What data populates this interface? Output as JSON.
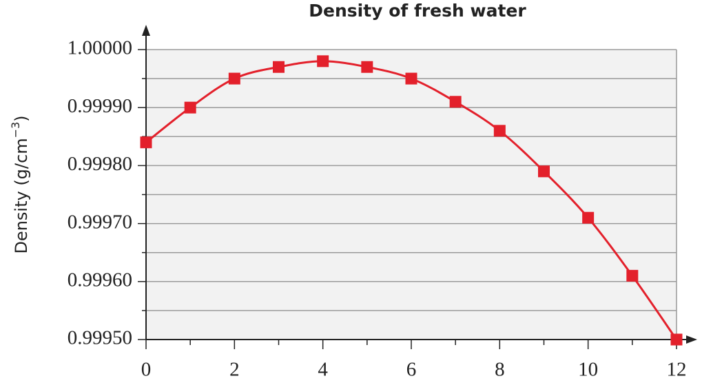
{
  "chart_data": {
    "type": "line",
    "title": "Density of fresh water",
    "ylabel": [
      "Density (g/cm",
      "−3",
      ")"
    ],
    "x": [
      0,
      1,
      2,
      3,
      4,
      5,
      6,
      7,
      8,
      9,
      10,
      11,
      12
    ],
    "series": [
      {
        "color": "#e3202b",
        "values": [
          0.99984,
          0.9999,
          0.99995,
          0.99997,
          0.99998,
          0.99997,
          0.99995,
          0.99991,
          0.99986,
          0.99979,
          0.99971,
          0.99961,
          0.9995
        ]
      }
    ],
    "xlim": [
      0,
      12
    ],
    "xticks": [
      0,
      2,
      4,
      6,
      8,
      10,
      12
    ],
    "x_minor_ticks": [
      1,
      3,
      5,
      7,
      9,
      11
    ],
    "ylim": [
      0.9995,
      1.0
    ],
    "yticks": [
      {
        "value": 0.9995,
        "label": "0.99950"
      },
      {
        "value": 0.9996,
        "label": "0.99960"
      },
      {
        "value": 0.9997,
        "label": "0.99970"
      },
      {
        "value": 0.9998,
        "label": "0.99980"
      },
      {
        "value": 0.9999,
        "label": "0.99990"
      },
      {
        "value": 1,
        "label": "1.00000"
      }
    ],
    "y_minor_ticks": [
      0.99955,
      0.99965,
      0.99975,
      0.99985,
      0.99995
    ],
    "grid": true
  }
}
